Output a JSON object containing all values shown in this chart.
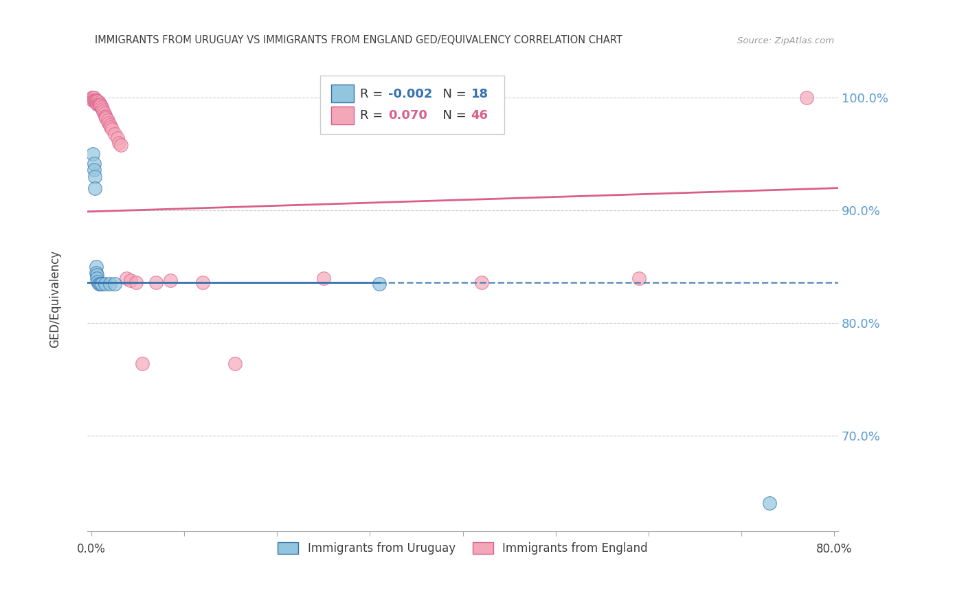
{
  "title": "IMMIGRANTS FROM URUGUAY VS IMMIGRANTS FROM ENGLAND GED/EQUIVALENCY CORRELATION CHART",
  "source": "Source: ZipAtlas.com",
  "ylabel": "GED/Equivalency",
  "y_ticks": [
    0.7,
    0.8,
    0.9,
    1.0
  ],
  "y_tick_labels": [
    "70.0%",
    "80.0%",
    "90.0%",
    "100.0%"
  ],
  "y_lim": [
    0.615,
    1.028
  ],
  "x_lim": [
    -0.004,
    0.804
  ],
  "blue_color": "#92c5de",
  "pink_color": "#f4a7b9",
  "trend_blue": "#3572b0",
  "trend_pink": "#d95f8a",
  "axis_label_color": "#5b9bd5",
  "grid_color": "#cccccc",
  "title_color": "#404040",
  "background": "#ffffff",
  "uruguay_x": [
    0.002,
    0.003,
    0.003,
    0.004,
    0.004,
    0.005,
    0.005,
    0.006,
    0.006,
    0.007,
    0.008,
    0.01,
    0.011,
    0.015,
    0.02,
    0.025,
    0.31,
    0.73
  ],
  "uruguay_y": [
    0.95,
    0.942,
    0.936,
    0.93,
    0.92,
    0.85,
    0.845,
    0.843,
    0.84,
    0.837,
    0.835,
    0.835,
    0.835,
    0.835,
    0.835,
    0.835,
    0.835,
    0.64
  ],
  "england_x": [
    0.001,
    0.002,
    0.002,
    0.003,
    0.003,
    0.004,
    0.004,
    0.005,
    0.005,
    0.006,
    0.006,
    0.007,
    0.007,
    0.008,
    0.008,
    0.009,
    0.01,
    0.01,
    0.011,
    0.012,
    0.013,
    0.014,
    0.015,
    0.016,
    0.016,
    0.018,
    0.019,
    0.02,
    0.021,
    0.022,
    0.025,
    0.028,
    0.03,
    0.032,
    0.038,
    0.042,
    0.048,
    0.055,
    0.07,
    0.085,
    0.12,
    0.155,
    0.25,
    0.42,
    0.59,
    0.77
  ],
  "england_y": [
    1.0,
    1.0,
    0.998,
    1.0,
    0.998,
    0.998,
    0.997,
    0.998,
    0.996,
    0.997,
    0.995,
    0.997,
    0.994,
    0.996,
    0.994,
    0.994,
    0.994,
    0.993,
    0.992,
    0.99,
    0.988,
    0.986,
    0.984,
    0.983,
    0.982,
    0.98,
    0.978,
    0.976,
    0.974,
    0.972,
    0.968,
    0.964,
    0.96,
    0.958,
    0.84,
    0.838,
    0.836,
    0.764,
    0.836,
    0.838,
    0.836,
    0.764,
    0.84,
    0.836,
    0.84,
    1.0
  ],
  "trend_pink_x0": 0.0,
  "trend_pink_y0": 0.899,
  "trend_pink_x1": 0.8,
  "trend_pink_y1": 0.92,
  "trend_blue_y": 0.836
}
